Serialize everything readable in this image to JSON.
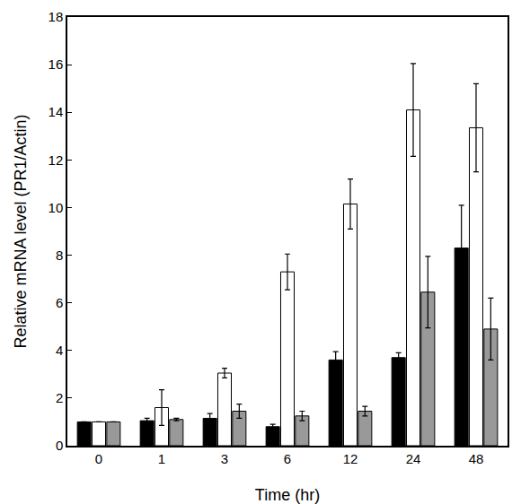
{
  "chart_data": {
    "type": "bar",
    "x_label": "Time (hr)",
    "y_label": "Relative mRNA level (PR1/Actin)",
    "categories": [
      "0",
      "1",
      "3",
      "6",
      "12",
      "24",
      "48"
    ],
    "series": [
      {
        "color": "#000000",
        "values": [
          1.0,
          1.05,
          1.15,
          0.8,
          3.6,
          3.7,
          8.3
        ],
        "errors": [
          0,
          0.1,
          0.2,
          0.1,
          0.35,
          0.2,
          1.8
        ]
      },
      {
        "color": "#ffffff",
        "values": [
          1.0,
          1.6,
          3.05,
          7.3,
          10.15,
          14.1,
          13.35
        ],
        "errors": [
          0,
          0.75,
          0.2,
          0.75,
          1.05,
          1.95,
          1.85
        ]
      },
      {
        "color": "#999999",
        "values": [
          1.0,
          1.1,
          1.45,
          1.25,
          1.45,
          6.45,
          4.9
        ],
        "errors": [
          0,
          0.05,
          0.3,
          0.2,
          0.2,
          1.5,
          1.3
        ]
      }
    ],
    "ylim": [
      0,
      18
    ],
    "yticks": [
      0,
      2,
      4,
      6,
      8,
      10,
      12,
      14,
      16,
      18
    ],
    "grid": false
  }
}
